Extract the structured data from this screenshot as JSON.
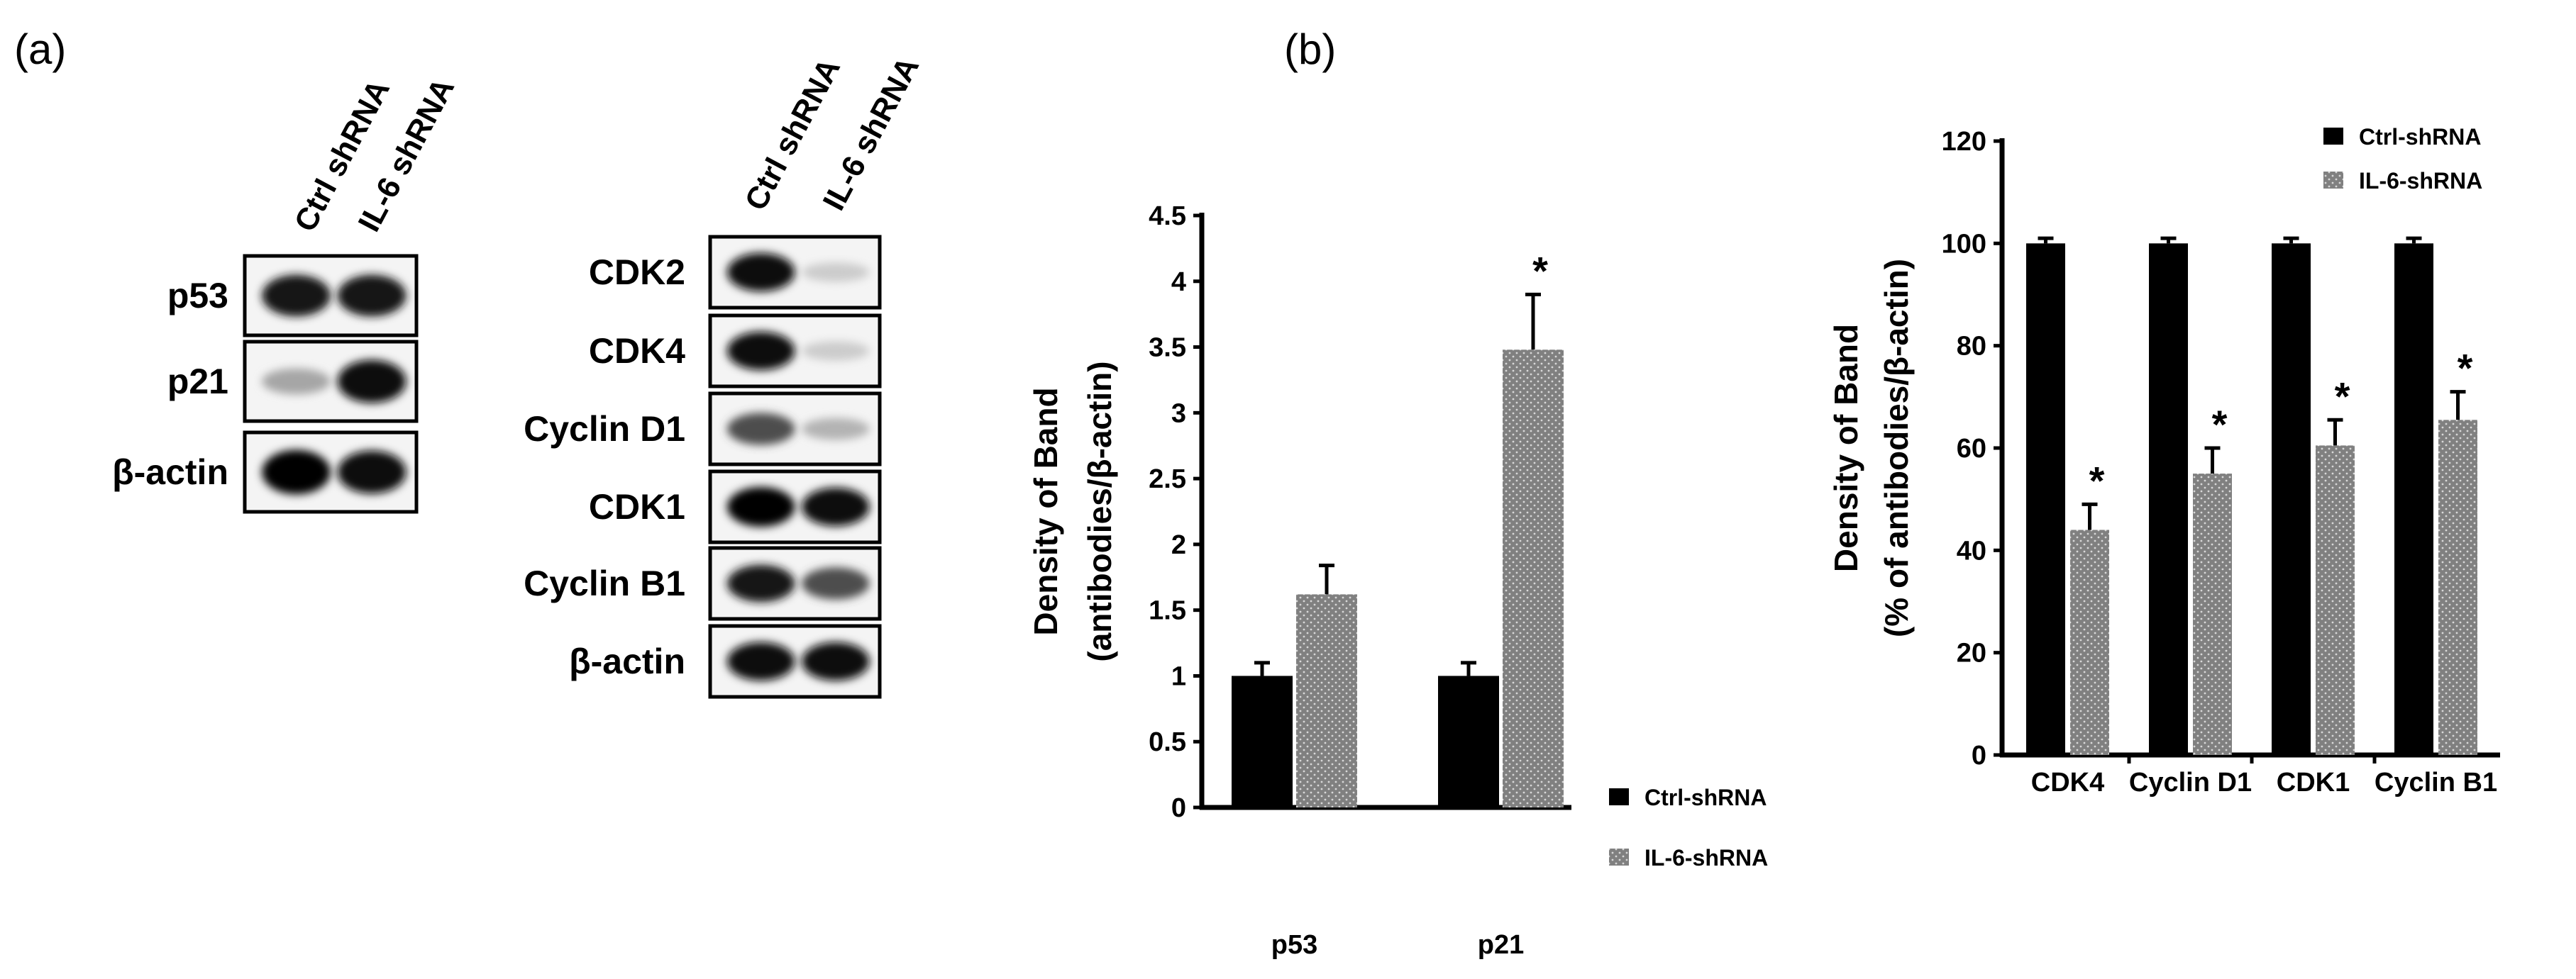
{
  "panels": {
    "a": "(a)",
    "b": "(b)"
  },
  "blots": [
    {
      "columns": [
        "Ctrl shRNA",
        "IL-6 shRNA"
      ],
      "rows": [
        {
          "label": "p53",
          "intensity": [
            0.9,
            0.9
          ]
        },
        {
          "label": "p21",
          "intensity": [
            0.35,
            0.95
          ]
        },
        {
          "label": "β-actin",
          "intensity": [
            1.0,
            0.95
          ]
        }
      ]
    },
    {
      "columns": [
        "Ctrl shRNA",
        "IL-6 shRNA"
      ],
      "rows": [
        {
          "label": "CDK2",
          "intensity": [
            0.95,
            0.2
          ]
        },
        {
          "label": "CDK4",
          "intensity": [
            0.95,
            0.2
          ]
        },
        {
          "label": "Cyclin D1",
          "intensity": [
            0.7,
            0.3
          ]
        },
        {
          "label": "CDK1",
          "intensity": [
            1.0,
            0.95
          ]
        },
        {
          "label": "Cyclin B1",
          "intensity": [
            0.9,
            0.7
          ]
        },
        {
          "label": "β-actin",
          "intensity": [
            0.95,
            0.95
          ]
        }
      ]
    }
  ],
  "colors": {
    "ctrl": "#000000",
    "il6": "#808080"
  },
  "chart_data": [
    {
      "type": "bar",
      "categories": [
        "p53",
        "p21"
      ],
      "series": [
        {
          "name": "Ctrl-shRNA",
          "values": [
            1.0,
            1.0
          ],
          "errors": [
            0.1,
            0.1
          ],
          "significant": [
            false,
            false
          ]
        },
        {
          "name": "IL-6-shRNA",
          "values": [
            1.62,
            3.48
          ],
          "errors": [
            0.22,
            0.42
          ],
          "significant": [
            false,
            true
          ]
        }
      ],
      "ylabel_lines": [
        "Density of Band",
        "(antibodies/β-actin)"
      ],
      "ylim": [
        0,
        4.5
      ],
      "yticks": [
        "0",
        "0.5",
        "1",
        "1.5",
        "2",
        "2.5",
        "3",
        "3.5",
        "4",
        "4.5"
      ],
      "significance_marker": "*",
      "legend_position": "right-bottom",
      "grid": false
    },
    {
      "type": "bar",
      "categories": [
        "CDK4",
        "Cyclin D1",
        "CDK1",
        "Cyclin B1"
      ],
      "series": [
        {
          "name": "Ctrl-shRNA",
          "values": [
            100,
            100,
            100,
            100
          ],
          "errors": [
            1,
            1,
            1,
            1
          ],
          "significant": [
            false,
            false,
            false,
            false
          ]
        },
        {
          "name": "IL-6-shRNA",
          "values": [
            44,
            55,
            60.5,
            65.5
          ],
          "errors": [
            5,
            5,
            5,
            5.5
          ],
          "significant": [
            true,
            true,
            true,
            true
          ]
        }
      ],
      "ylabel_lines": [
        "Density of Band",
        "(% of antibodies/β-actin)"
      ],
      "ylim": [
        0,
        120
      ],
      "yticks": [
        "0",
        "20",
        "40",
        "60",
        "80",
        "100",
        "120"
      ],
      "significance_marker": "*",
      "legend_position": "top-right",
      "grid": false
    }
  ]
}
